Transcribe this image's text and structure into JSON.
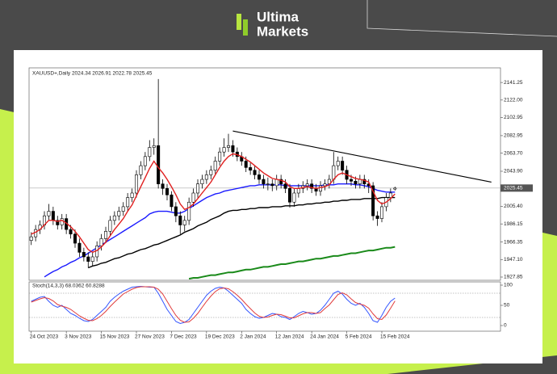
{
  "logo": {
    "line1": "Ultima",
    "line2": "Markets"
  },
  "chart_data": [
    {
      "type": "candlestick",
      "title": "XAUUSD+,Daily 2024.34 2026.91 2022.78 2025.45",
      "categories": [
        "24 Oct 2023",
        null,
        null,
        null,
        null,
        null,
        null,
        null,
        "3 Nov 2023",
        null,
        null,
        null,
        null,
        null,
        null,
        null,
        "15 Nov 2023",
        null,
        null,
        null,
        null,
        null,
        null,
        null,
        "27 Nov 2023",
        null,
        null,
        null,
        null,
        null,
        null,
        null,
        "7 Dec 2023",
        null,
        null,
        null,
        null,
        null,
        null,
        null,
        "19 Dec 2023",
        null,
        null,
        null,
        null,
        null,
        null,
        null,
        "2 Jan 2024",
        null,
        null,
        null,
        null,
        null,
        null,
        null,
        "12 Jan 2024",
        null,
        null,
        null,
        null,
        null,
        null,
        null,
        "24 Jan 2024",
        null,
        null,
        null,
        null,
        null,
        null,
        null,
        "5 Feb 2024",
        null,
        null,
        null,
        null,
        null,
        null,
        null,
        "15 Feb 2024",
        null,
        null,
        null
      ],
      "open": [
        1968,
        1972,
        1980,
        1985,
        1995,
        2000,
        1990,
        1985,
        1992,
        1980,
        1975,
        1965,
        1955,
        1950,
        1945,
        1950,
        1962,
        1970,
        1978,
        1990,
        1995,
        2000,
        2005,
        2015,
        2020,
        2040,
        2050,
        2060,
        2070,
        2072,
        2030,
        2025,
        2018,
        2005,
        1995,
        1985,
        1990,
        2010,
        2020,
        2030,
        2035,
        2040,
        2045,
        2055,
        2065,
        2070,
        2072,
        2065,
        2060,
        2055,
        2048,
        2045,
        2040,
        2035,
        2030,
        2030,
        2028,
        2035,
        2030,
        2025,
        2010,
        2020,
        2025,
        2028,
        2030,
        2025,
        2022,
        2028,
        2030,
        2035,
        2050,
        2055,
        2045,
        2035,
        2033,
        2030,
        2035,
        2030,
        2028,
        1995,
        1992,
        2005,
        2015,
        2024.34
      ],
      "high": [
        1977,
        1985,
        1990,
        2000,
        2008,
        2005,
        1995,
        1997,
        1997,
        1985,
        1980,
        1970,
        1960,
        1955,
        1955,
        1967,
        1975,
        1983,
        1995,
        2000,
        2005,
        2010,
        2020,
        2025,
        2045,
        2055,
        2065,
        2078,
        2080,
        2145,
        2035,
        2030,
        2022,
        2010,
        2000,
        1995,
        2015,
        2025,
        2035,
        2040,
        2045,
        2050,
        2060,
        2070,
        2080,
        2085,
        2078,
        2070,
        2065,
        2060,
        2053,
        2050,
        2045,
        2040,
        2037,
        2035,
        2040,
        2040,
        2035,
        2030,
        2025,
        2030,
        2033,
        2035,
        2035,
        2030,
        2033,
        2035,
        2040,
        2065,
        2060,
        2060,
        2050,
        2040,
        2038,
        2040,
        2040,
        2035,
        2032,
        2000,
        2010,
        2020,
        2025,
        2026.91
      ],
      "low": [
        1963,
        1967,
        1975,
        1980,
        1990,
        1985,
        1980,
        1980,
        1975,
        1970,
        1960,
        1950,
        1945,
        1938,
        1940,
        1945,
        1957,
        1965,
        1973,
        1985,
        1990,
        1995,
        2000,
        2010,
        2015,
        2035,
        2045,
        2055,
        2062,
        2025,
        2018,
        2012,
        2000,
        1988,
        1975,
        1978,
        1985,
        2005,
        2015,
        2025,
        2030,
        2035,
        2040,
        2050,
        2060,
        2065,
        2060,
        2055,
        2050,
        2043,
        2040,
        2035,
        2030,
        2025,
        2023,
        2022,
        2023,
        2025,
        2020,
        2004,
        2005,
        2015,
        2020,
        2023,
        2020,
        2017,
        2017,
        2023,
        2025,
        2030,
        2045,
        2040,
        2030,
        2028,
        2025,
        2025,
        2025,
        2020,
        1990,
        1984,
        1988,
        2000,
        2010,
        2022.78
      ],
      "close": [
        1972,
        1980,
        1985,
        1995,
        2000,
        1990,
        1985,
        1992,
        1980,
        1975,
        1965,
        1955,
        1950,
        1945,
        1950,
        1962,
        1970,
        1978,
        1990,
        1995,
        2000,
        2005,
        2015,
        2020,
        2040,
        2050,
        2060,
        2070,
        2072,
        2030,
        2025,
        2018,
        2005,
        1995,
        1985,
        1990,
        2010,
        2020,
        2030,
        2035,
        2040,
        2045,
        2055,
        2065,
        2070,
        2072,
        2065,
        2060,
        2055,
        2048,
        2045,
        2040,
        2035,
        2030,
        2030,
        2028,
        2035,
        2030,
        2025,
        2010,
        2020,
        2025,
        2028,
        2030,
        2025,
        2022,
        2028,
        2030,
        2035,
        2050,
        2055,
        2045,
        2035,
        2033,
        2030,
        2035,
        2030,
        2028,
        1995,
        1992,
        2005,
        2015,
        2020,
        2025.45
      ],
      "up_color": "#ffffff",
      "down_color": "#000000",
      "overlays": [
        {
          "color": "#e02020",
          "values": [
            1975,
            1977,
            1980,
            1985,
            1990,
            1990,
            1989,
            1990,
            1987,
            1983,
            1978,
            1972,
            1965,
            1958,
            1955,
            1957,
            1961,
            1966,
            1973,
            1980,
            1986,
            1992,
            2000,
            2007,
            2017,
            2027,
            2037,
            2047,
            2055,
            2048,
            2042,
            2035,
            2027,
            2018,
            2008,
            2002,
            2004,
            2008,
            2014,
            2020,
            2026,
            2032,
            2040,
            2048,
            2055,
            2060,
            2063,
            2062,
            2060,
            2057,
            2054,
            2050,
            2046,
            2042,
            2039,
            2036,
            2035,
            2034,
            2032,
            2027,
            2025,
            2025,
            2026,
            2027,
            2026,
            2025,
            2026,
            2027,
            2029,
            2035,
            2040,
            2042,
            2040,
            2038,
            2036,
            2035,
            2034,
            2032,
            2022,
            2012,
            2008,
            2010,
            2014,
            2019
          ]
        },
        {
          "color": "#1a1aff",
          "values": [
            null,
            null,
            null,
            1928,
            1931,
            1934,
            1936,
            1939,
            1941,
            1944,
            1946,
            1949,
            1951,
            1954,
            1957,
            1960,
            1963,
            1966,
            1969,
            1972,
            1975,
            1978,
            1981,
            1984,
            1987,
            1990,
            1993,
            1997,
            1999,
            2000,
            2000,
            2000,
            1999,
            1998,
            1998,
            2000,
            2003,
            2006,
            2009,
            2012,
            2015,
            2017,
            2019,
            2020,
            2022,
            2023,
            2024,
            2025,
            2026,
            2027,
            2028,
            2028,
            2029,
            2029,
            2029,
            2029,
            2029,
            2029,
            2028,
            2028,
            2028,
            2028,
            2028,
            2028,
            2028,
            2028,
            2028,
            2029,
            2029,
            2029,
            2030,
            2030,
            2030,
            2030,
            2029,
            2029,
            2028,
            2027,
            2025,
            2023,
            2022,
            2021,
            2021,
            2021
          ]
        },
        {
          "color": "#000000",
          "values": [
            null,
            null,
            null,
            null,
            null,
            null,
            null,
            null,
            null,
            null,
            null,
            null,
            null,
            1938,
            1940,
            1941,
            1943,
            1944,
            1946,
            1948,
            1949,
            1951,
            1953,
            1954,
            1956,
            1958,
            1959,
            1961,
            1963,
            1964,
            1966,
            1968,
            1970,
            1972,
            1974,
            1977,
            1979,
            1981,
            1984,
            1986,
            1988,
            1991,
            1993,
            1995,
            1998,
            2000,
            2001,
            2001,
            2002,
            2002,
            2003,
            2003,
            2004,
            2004,
            2004,
            2005,
            2005,
            2005,
            2006,
            2006,
            2006,
            2007,
            2007,
            2008,
            2008,
            2009,
            2009,
            2010,
            2010,
            2011,
            2011,
            2012,
            2012,
            2013,
            2013,
            2013,
            2014,
            2014,
            2014,
            2014,
            2015,
            2015,
            2015,
            2015
          ]
        },
        {
          "color": "#1a8a1a",
          "values": [
            null,
            null,
            null,
            null,
            null,
            null,
            null,
            null,
            null,
            null,
            null,
            null,
            null,
            null,
            null,
            null,
            null,
            null,
            null,
            null,
            null,
            null,
            null,
            null,
            null,
            null,
            null,
            null,
            null,
            null,
            null,
            null,
            null,
            null,
            null,
            null,
            1926,
            1927,
            1927,
            1928,
            1929,
            1930,
            1930,
            1931,
            1932,
            1933,
            1933,
            1934,
            1935,
            1936,
            1936,
            1937,
            1938,
            1939,
            1939,
            1940,
            1941,
            1942,
            1942,
            1943,
            1944,
            1945,
            1945,
            1946,
            1947,
            1948,
            1948,
            1949,
            1950,
            1951,
            1951,
            1952,
            1953,
            1954,
            1954,
            1955,
            1956,
            1957,
            1957,
            1958,
            1959,
            1960,
            1960,
            1961
          ]
        }
      ],
      "trendline": {
        "x": [
          46,
          105
        ],
        "y": [
          2088,
          2032
        ],
        "color": "#000000"
      },
      "current_price": 2025.45,
      "ylim": [
        1924.3,
        2157.3
      ],
      "yticks": [
        2141.25,
        {
          "value": 2122,
          "label": "2122.00"
        },
        2102.95,
        2082.95,
        {
          "value": 2063.7,
          "label": "2063.70"
        },
        {
          "value": 2043.9,
          "label": "2043.90"
        },
        {
          "value": 2005.4,
          "label": "2005.40"
        },
        1986.15,
        1966.35,
        {
          "value": 1947.1,
          "label": "1947.10"
        },
        1927.85
      ]
    },
    {
      "type": "line",
      "title": "Stoch(14,3,3) 68.0362 60.8288",
      "series": [
        {
          "color": "#3355ff",
          "values": [
            60,
            65,
            70,
            72,
            60,
            50,
            45,
            50,
            40,
            30,
            25,
            18,
            12,
            10,
            15,
            25,
            35,
            45,
            60,
            70,
            78,
            85,
            90,
            95,
            96,
            97,
            96,
            95,
            95,
            80,
            60,
            40,
            25,
            10,
            5,
            8,
            15,
            30,
            45,
            60,
            75,
            85,
            92,
            95,
            93,
            85,
            75,
            65,
            55,
            40,
            30,
            22,
            18,
            20,
            25,
            30,
            28,
            22,
            20,
            15,
            22,
            30,
            35,
            32,
            28,
            30,
            38,
            50,
            65,
            80,
            85,
            78,
            65,
            55,
            50,
            55,
            45,
            30,
            12,
            8,
            25,
            45,
            60,
            68.0362
          ]
        },
        {
          "color": "#e03c3c",
          "values": [
            58,
            62,
            66,
            69,
            67,
            61,
            52,
            48,
            45,
            40,
            32,
            24,
            18,
            13,
            12,
            17,
            25,
            35,
            47,
            58,
            68,
            78,
            84,
            90,
            94,
            96,
            96,
            96,
            95,
            90,
            78,
            60,
            42,
            25,
            13,
            8,
            9,
            18,
            30,
            45,
            60,
            73,
            84,
            91,
            93,
            91,
            84,
            75,
            65,
            53,
            42,
            31,
            23,
            20,
            21,
            25,
            28,
            27,
            23,
            19,
            19,
            24,
            29,
            32,
            32,
            30,
            32,
            42,
            51,
            64,
            77,
            81,
            76,
            66,
            57,
            53,
            50,
            43,
            29,
            17,
            15,
            26,
            43,
            60.8288
          ]
        }
      ],
      "levels": [
        20,
        80
      ],
      "ylim": [
        -14,
        108
      ],
      "yticks": [
        0,
        50,
        100
      ]
    }
  ]
}
